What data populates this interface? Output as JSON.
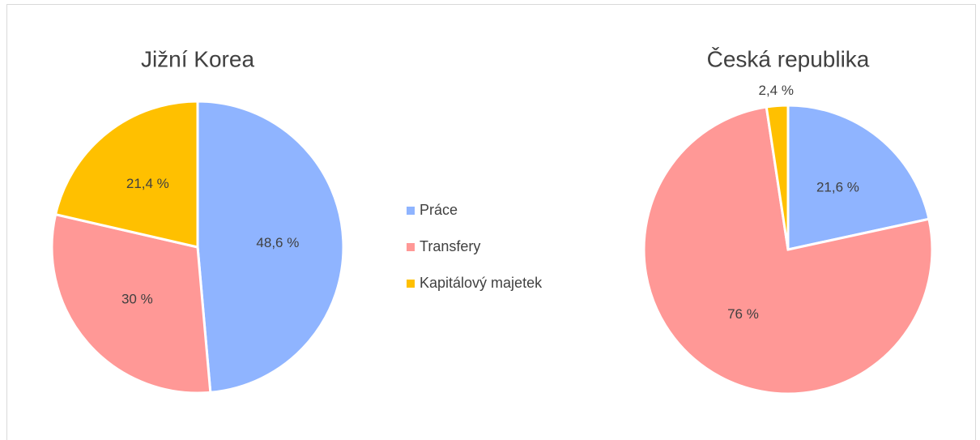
{
  "chart_data": [
    {
      "type": "pie",
      "title": "Jižní Korea",
      "values": [
        48.6,
        30,
        21.4
      ],
      "value_labels": [
        "48,6 %",
        "30 %",
        "21,4 %"
      ]
    },
    {
      "type": "pie",
      "title": "Česká republika",
      "values": [
        21.6,
        76,
        2.4
      ],
      "value_labels": [
        "21,6 %",
        "76 %",
        "2,4 %"
      ]
    }
  ],
  "legend": {
    "items": [
      "Práce",
      "Transfery",
      "Kapitálový majetek"
    ],
    "colors": [
      "#8fb4ff",
      "#ff9896",
      "#ffc000"
    ]
  }
}
